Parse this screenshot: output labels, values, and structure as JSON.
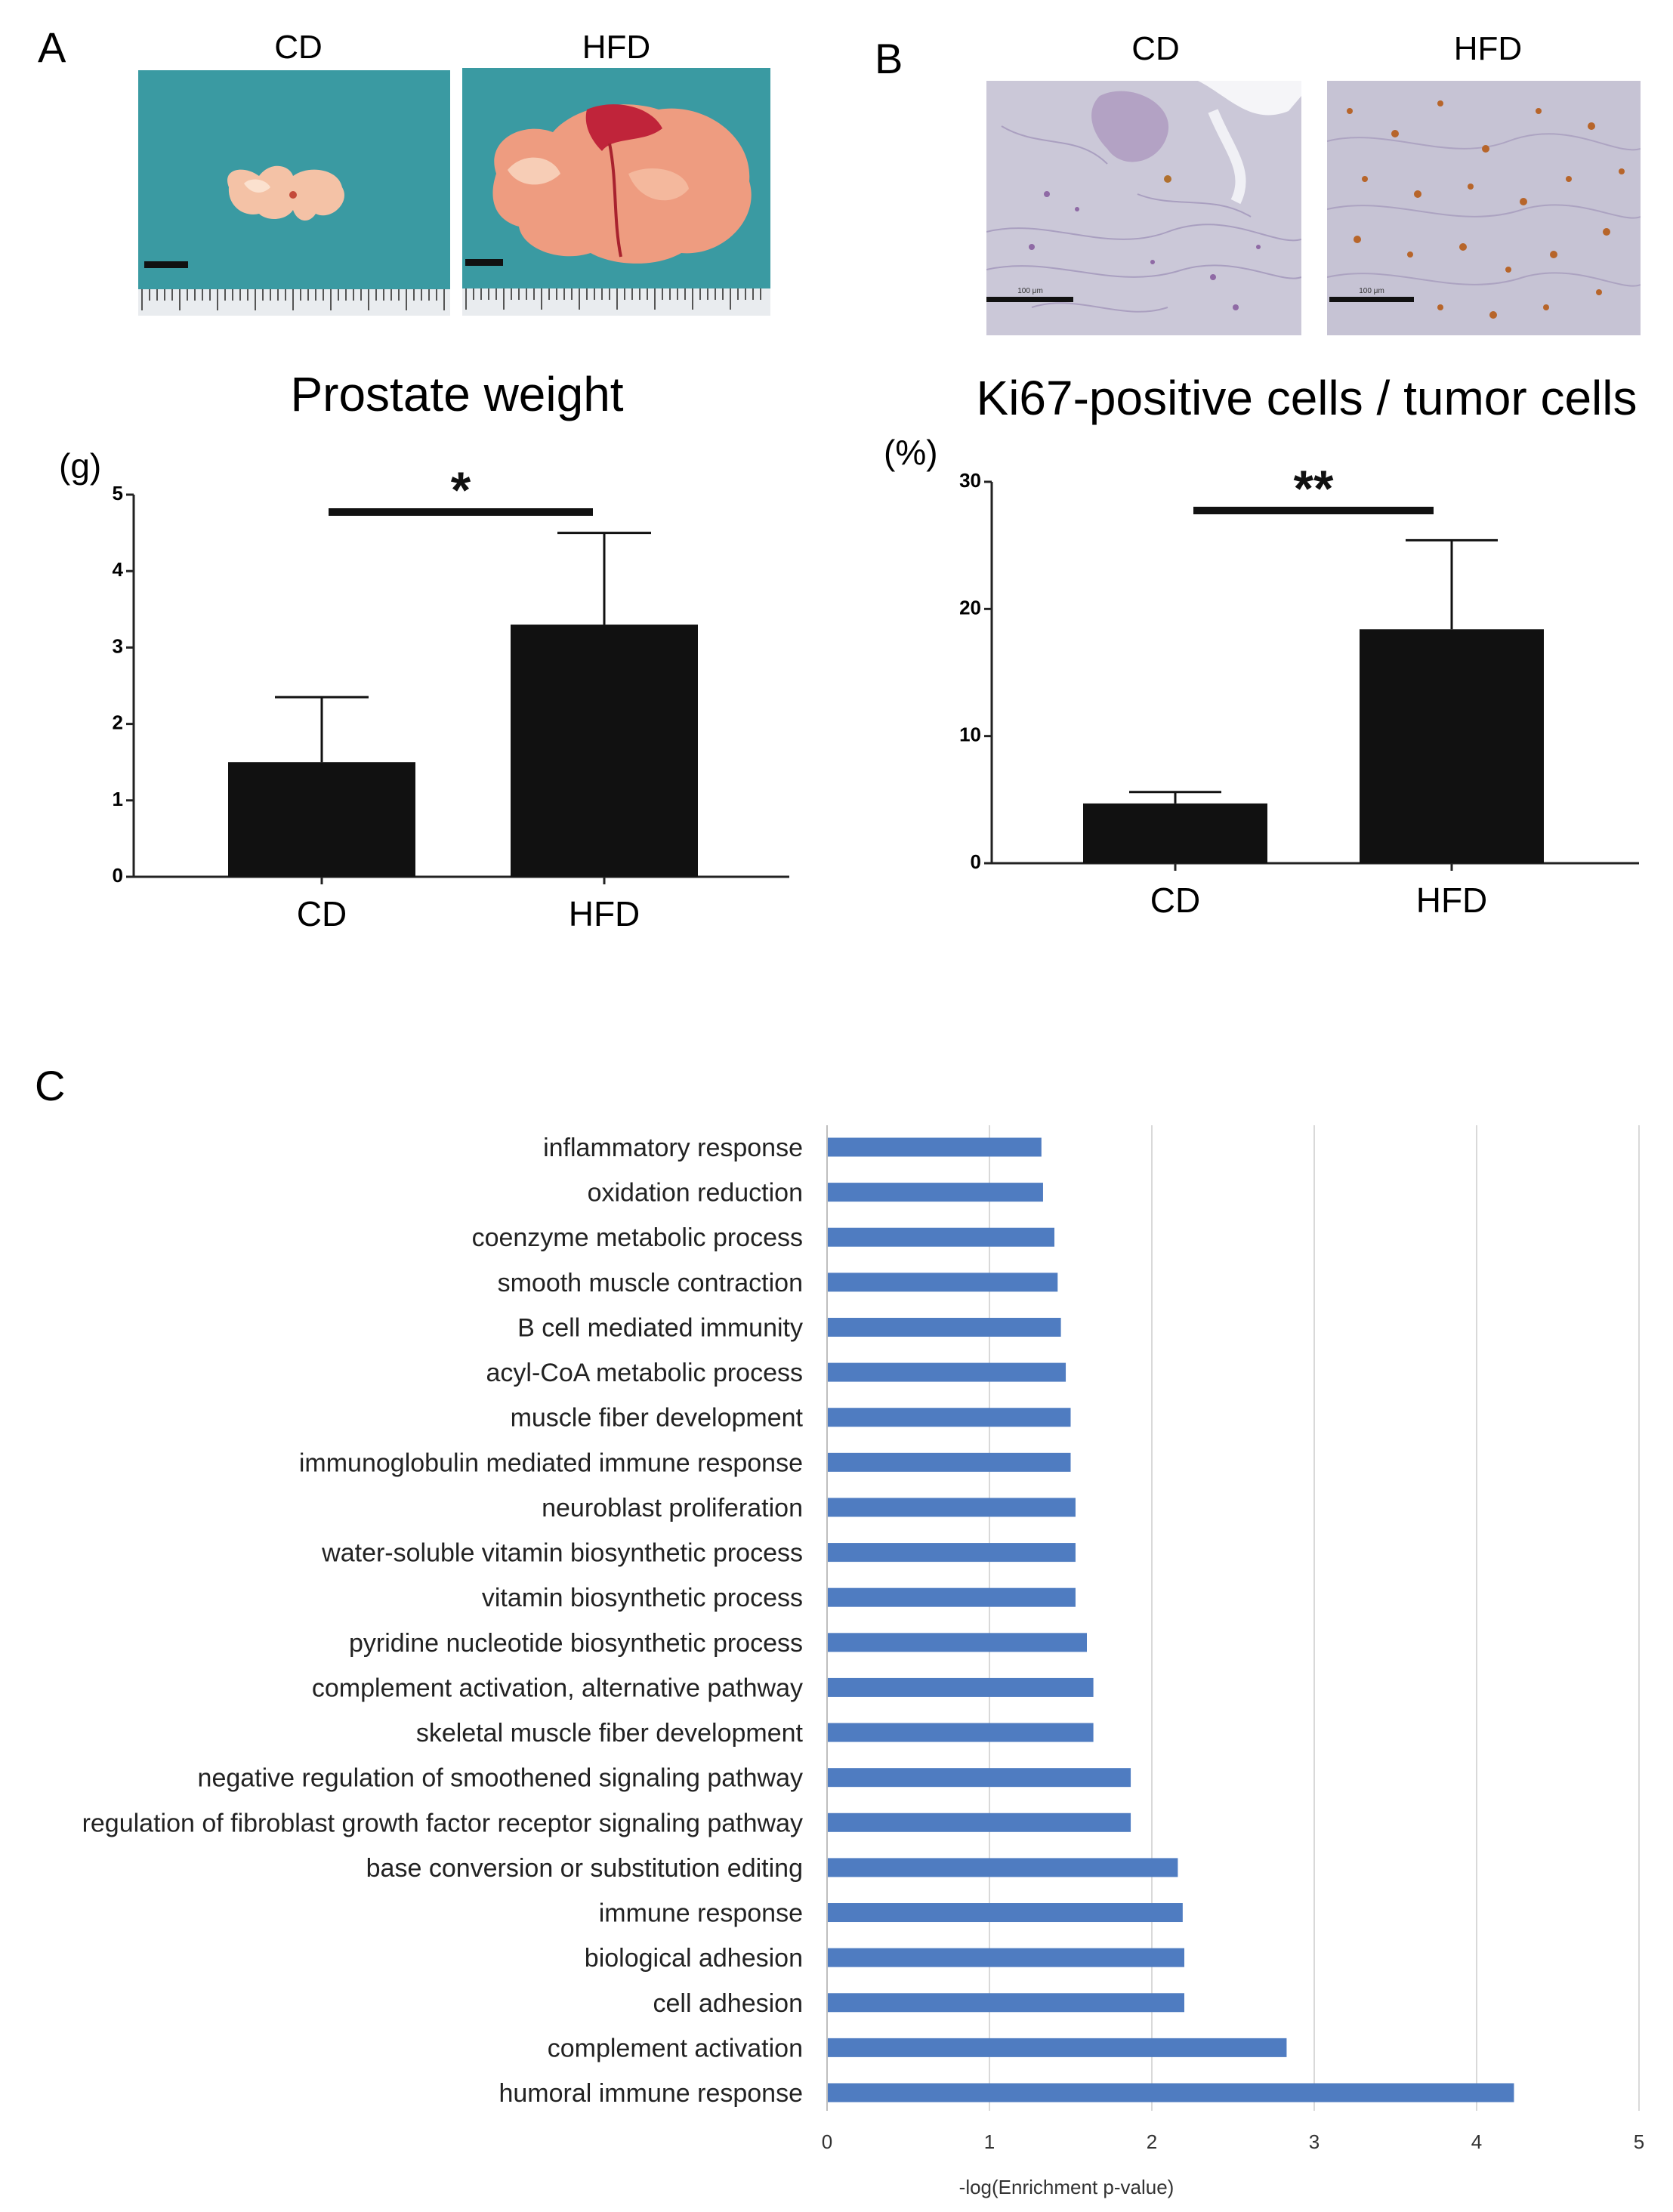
{
  "panels": {
    "a_letter": "A",
    "b_letter": "B",
    "c_letter": "C"
  },
  "panel_a": {
    "photo_labels": [
      "CD",
      "HFD"
    ]
  },
  "panel_b": {
    "photo_labels": [
      "CD",
      "HFD"
    ],
    "scalebar_text": "100 μm"
  },
  "colors": {
    "photo_bg": "#3a9aa2",
    "tissue": "#f1b39a",
    "histo_bg": "#c9c7d6",
    "bar_dark": "#111111",
    "bar_blue": "#4f7cc1"
  },
  "chart_data": [
    {
      "id": "prostate-weight",
      "type": "bar",
      "title": "Prostate weight",
      "unit_label": "(g)",
      "categories": [
        "CD",
        "HFD"
      ],
      "values": [
        1.5,
        3.3
      ],
      "errors": [
        0.85,
        1.2
      ],
      "ylim": [
        0,
        5
      ],
      "yticks": [
        0,
        1,
        2,
        3,
        4,
        5
      ],
      "significance": "*"
    },
    {
      "id": "ki67",
      "type": "bar",
      "title": "Ki67-positive cells / tumor cells",
      "unit_label": "(%)",
      "categories": [
        "CD",
        "HFD"
      ],
      "values": [
        4.7,
        18.4
      ],
      "errors": [
        0.9,
        7.0
      ],
      "ylim": [
        0,
        30
      ],
      "yticks": [
        0,
        10,
        20,
        30
      ],
      "significance": "**"
    },
    {
      "id": "go-enrichment",
      "type": "bar",
      "orientation": "horizontal",
      "xlabel": "-log(Enrichment  p-value)",
      "xlim": [
        0,
        5
      ],
      "xticks": [
        0,
        1,
        2,
        3,
        4,
        5
      ],
      "categories": [
        "inflammatory response",
        "oxidation reduction",
        "coenzyme metabolic process",
        "smooth muscle contraction",
        "B cell mediated immunity",
        "acyl-CoA metabolic process",
        "muscle fiber development",
        "immunoglobulin mediated immune response",
        "neuroblast proliferation",
        "water-soluble vitamin biosynthetic process",
        "vitamin biosynthetic process",
        "pyridine nucleotide biosynthetic process",
        "complement activation, alternative pathway",
        "skeletal muscle fiber development",
        "negative regulation of smoothened signaling pathway",
        "regulation of fibroblast growth factor receptor signaling pathway",
        "base conversion or substitution editing",
        "immune response",
        "biological adhesion",
        "cell adhesion",
        "complement activation",
        "humoral immune response"
      ],
      "values": [
        1.32,
        1.33,
        1.4,
        1.42,
        1.44,
        1.47,
        1.5,
        1.5,
        1.53,
        1.53,
        1.53,
        1.6,
        1.64,
        1.64,
        1.87,
        1.87,
        2.16,
        2.19,
        2.2,
        2.2,
        2.83,
        4.23
      ]
    }
  ]
}
